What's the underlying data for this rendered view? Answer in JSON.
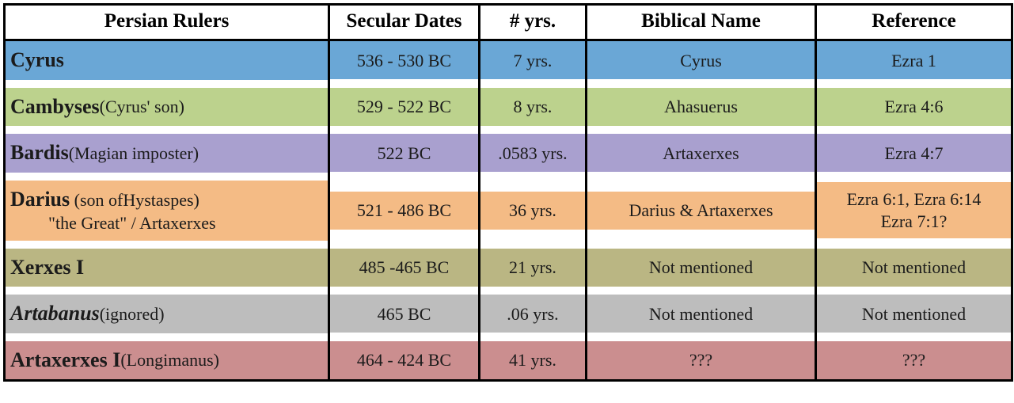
{
  "columns": {
    "ruler": "Persian Rulers",
    "dates": "Secular  Dates",
    "yrs": "# yrs.",
    "biblical": "Biblical Name",
    "reference": "Reference"
  },
  "row_colors": {
    "blue": "#6aa7d6",
    "green": "#bcd28d",
    "purple": "#a9a0cf",
    "orange": "#f4bb85",
    "olive": "#bab683",
    "gray": "#bdbdbd",
    "rose": "#cb8e8f"
  },
  "rows": [
    {
      "color_key": "blue",
      "ruler_name": "Cyrus",
      "ruler_note": "",
      "ruler_sub": "",
      "italic": false,
      "dates": "536 - 530 BC",
      "yrs": "7 yrs.",
      "biblical": "Cyrus",
      "reference": "Ezra 1"
    },
    {
      "color_key": "green",
      "ruler_name": "Cambyses",
      "ruler_note": " (Cyrus' son)",
      "ruler_sub": "",
      "italic": false,
      "dates": "529 - 522 BC",
      "yrs": "8 yrs.",
      "biblical": "Ahasuerus",
      "reference": "Ezra 4:6"
    },
    {
      "color_key": "purple",
      "ruler_name": "Bardis",
      "ruler_note": " (Magian imposter)",
      "ruler_sub": "",
      "italic": false,
      "dates": "522 BC",
      "yrs": ".0583 yrs.",
      "biblical": "Artaxerxes",
      "reference": "Ezra 4:7"
    },
    {
      "color_key": "orange",
      "ruler_name": "Darius",
      "ruler_note": " (son ofHystaspes)",
      "ruler_sub": "\"the Great\" / Artaxerxes",
      "italic": false,
      "dates": "521 - 486 BC",
      "yrs": "36 yrs.",
      "biblical": "Darius & Artaxerxes",
      "reference": "Ezra 6:1, Ezra 6:14\nEzra 7:1?"
    },
    {
      "color_key": "olive",
      "ruler_name": "Xerxes I",
      "ruler_note": "",
      "ruler_sub": "",
      "italic": false,
      "dates": "485 -465 BC",
      "yrs": "21 yrs.",
      "biblical": "Not mentioned",
      "reference": "Not mentioned"
    },
    {
      "color_key": "gray",
      "ruler_name": "Artabanus",
      "ruler_note": "  (ignored)",
      "ruler_sub": "",
      "italic": true,
      "dates": "465 BC",
      "yrs": ".06 yrs.",
      "biblical": "Not mentioned",
      "reference": "Not mentioned"
    },
    {
      "color_key": "rose",
      "ruler_name": "Artaxerxes I",
      "ruler_note": " (Longimanus)",
      "ruler_sub": "",
      "italic": false,
      "dates": "464 - 424 BC",
      "yrs": "41 yrs.",
      "biblical": "???",
      "reference": "???"
    }
  ]
}
